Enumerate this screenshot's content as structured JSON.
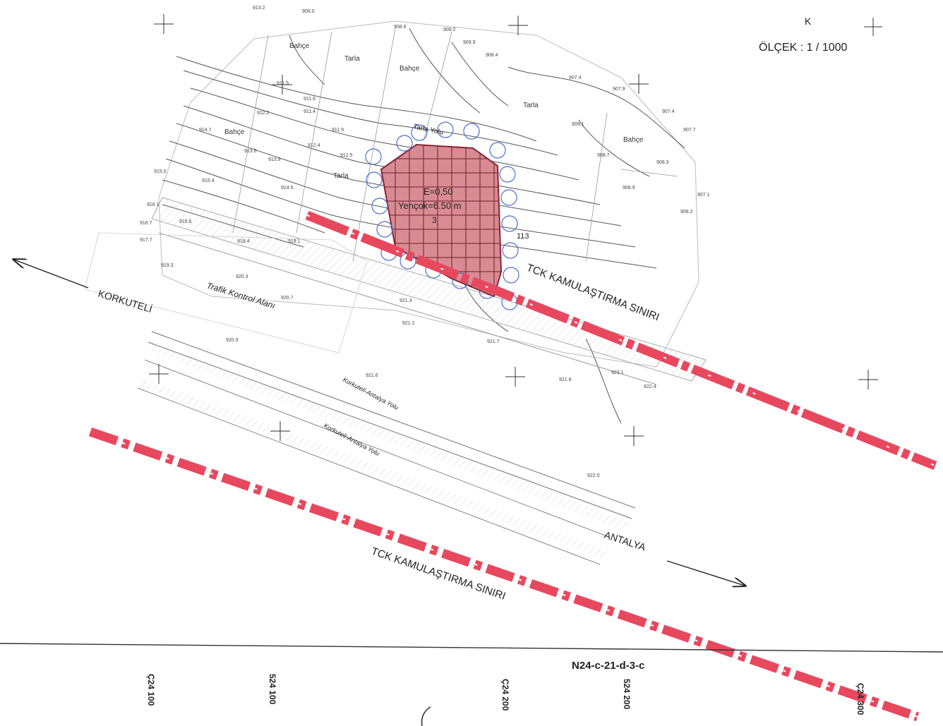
{
  "north_label": "K",
  "scale_label": "ÖLÇEK : 1 / 1000",
  "sheet_code": "N24-c-21-d-3-c",
  "boundary_label": "TCK KAMULAŞTIRMA SINIRI",
  "direction_left": "KORKUTELİ",
  "direction_right": "ANTALYA",
  "area_label": "Trafik Kontrol Alanı",
  "parcel": {
    "line1": "E=0,50",
    "line2": "Yençok=6.50 m",
    "line3": "3",
    "marker": "113"
  },
  "road_label": "Korkuteli-Antalya Yolu",
  "field_road_label": "Tarla Yolu",
  "land_use": [
    "Bahçe",
    "Tarla",
    "Bahçe",
    "Tarla",
    "Bahçe",
    "Tarla",
    "Bahçe",
    "Tarla",
    "Bahçe"
  ],
  "grid_ticks": [
    "Ç24 100",
    "524 100",
    "Ç24 200",
    "524 200",
    "Ç24 300"
  ],
  "spot_elevations": [
    "913.2",
    "909.0",
    "908.6",
    "909.2",
    "909.9",
    "908.4",
    "907.9",
    "907.4",
    "907.7",
    "907.4",
    "907.1",
    "909.1",
    "908.7",
    "908.9",
    "908.3",
    "908.2",
    "911.5",
    "911.6",
    "911.9",
    "911.4",
    "912.5",
    "912.2",
    "912.4",
    "913.6",
    "913.9",
    "914.5",
    "914.7",
    "915.0",
    "915.4",
    "915.6",
    "916.1",
    "916.7",
    "917.7",
    "918.4",
    "919.1",
    "919.3",
    "920.3",
    "920.7",
    "920.9",
    "921.2",
    "921.3",
    "921.6",
    "921.7",
    "921.8",
    "922.0",
    "922.4",
    "923.1"
  ]
}
